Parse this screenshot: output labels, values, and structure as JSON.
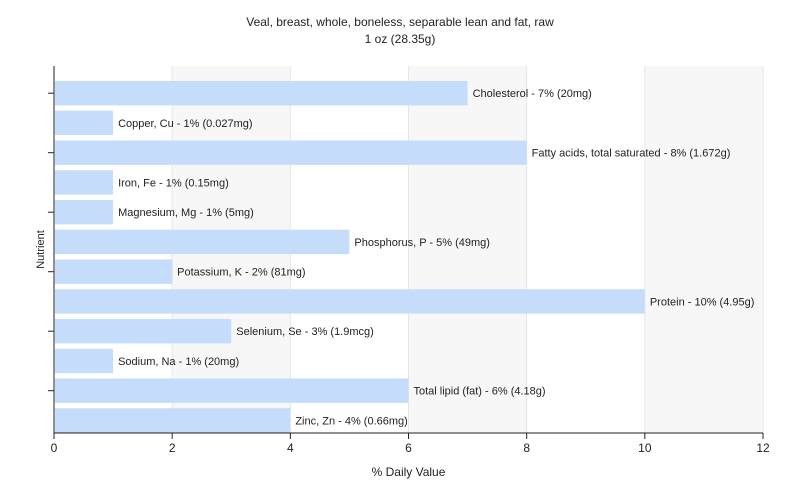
{
  "chart_data": {
    "type": "bar",
    "orientation": "horizontal",
    "title": "Veal, breast, whole, boneless, separable lean and fat, raw",
    "subtitle": "1 oz (28.35g)",
    "xlabel": "% Daily Value",
    "ylabel": "Nutrient",
    "xlim": [
      0,
      12
    ],
    "xticks": [
      "0",
      "2",
      "4",
      "6",
      "8",
      "10",
      "12"
    ],
    "grid": true,
    "bar_color": "#c6dcfb",
    "categories": [
      "Cholesterol",
      "Copper, Cu",
      "Fatty acids, total saturated",
      "Iron, Fe",
      "Magnesium, Mg",
      "Phosphorus, P",
      "Potassium, K",
      "Protein",
      "Selenium, Se",
      "Sodium, Na",
      "Total lipid (fat)",
      "Zinc, Zn"
    ],
    "values": [
      7,
      1,
      8,
      1,
      1,
      5,
      2,
      10,
      3,
      1,
      6,
      4
    ],
    "labels": [
      "Cholesterol - 7% (20mg)",
      "Copper, Cu - 1% (0.027mg)",
      "Fatty acids, total saturated - 8% (1.672g)",
      "Iron, Fe - 1% (0.15mg)",
      "Magnesium, Mg - 1% (5mg)",
      "Phosphorus, P - 5% (49mg)",
      "Potassium, K - 2% (81mg)",
      "Protein - 10% (4.95g)",
      "Selenium, Se - 3% (1.9mcg)",
      "Sodium, Na - 1% (20mg)",
      "Total lipid (fat) - 6% (4.18g)",
      "Zinc, Zn - 4% (0.66mg)"
    ]
  }
}
